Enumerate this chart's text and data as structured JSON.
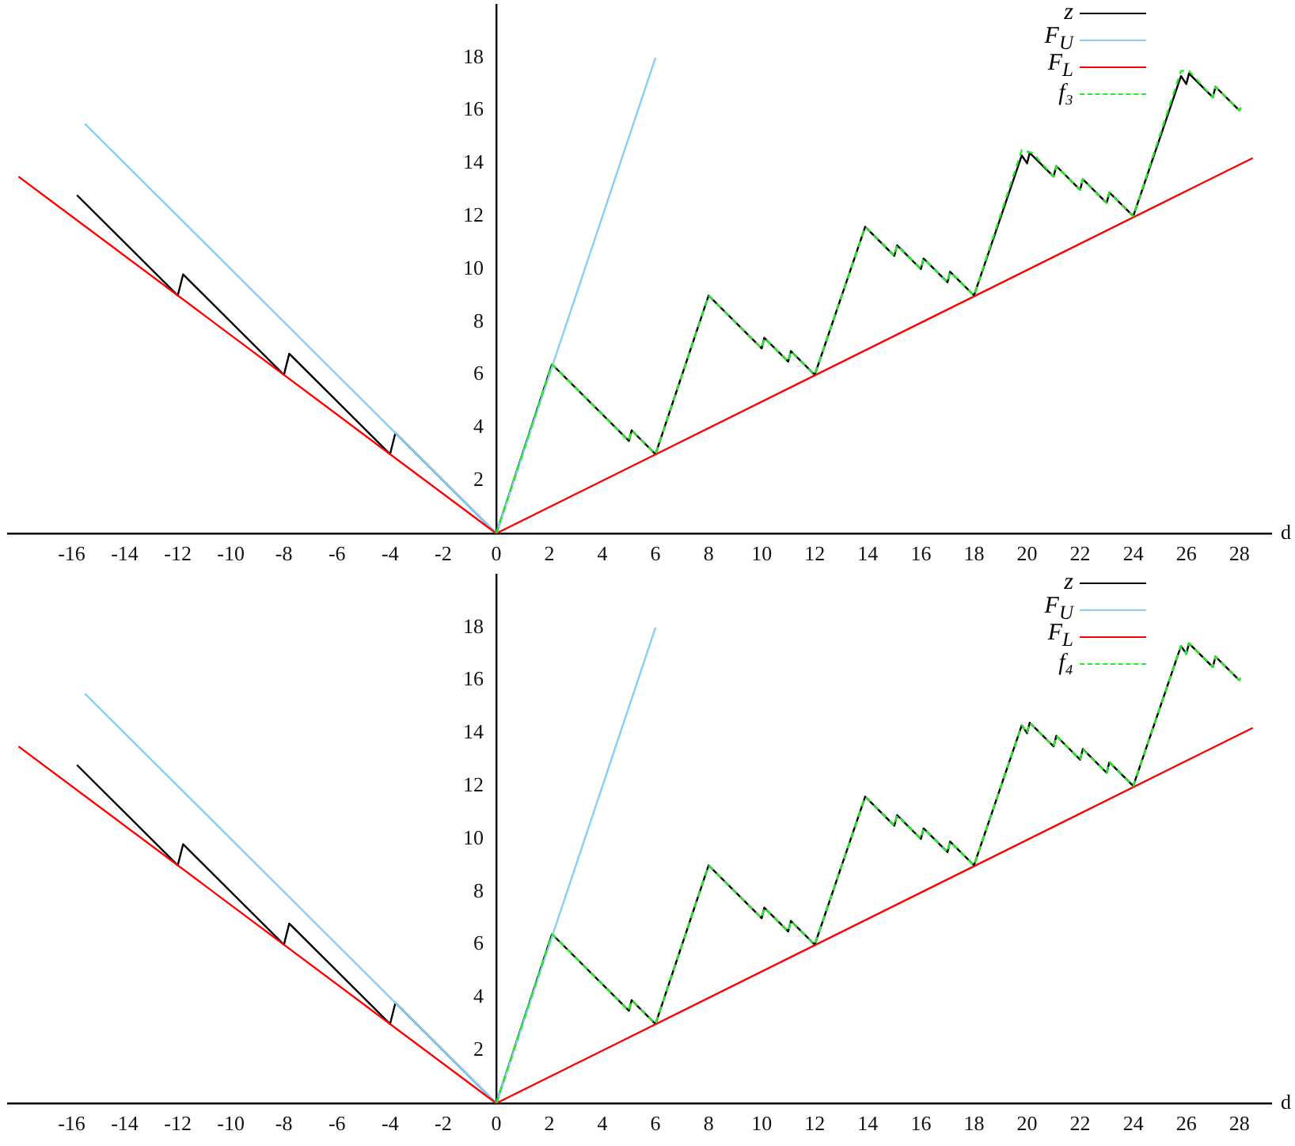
{
  "chart_data": [
    {
      "type": "line",
      "xlabel": "d",
      "xlim": [
        -18.4,
        29.2
      ],
      "ylim": [
        0,
        20
      ],
      "xticks": [
        -16,
        -14,
        -12,
        -10,
        -8,
        -6,
        -4,
        -2,
        0,
        2,
        4,
        6,
        8,
        10,
        12,
        14,
        16,
        18,
        20,
        22,
        24,
        26,
        28
      ],
      "yticks": [
        2,
        4,
        6,
        8,
        10,
        12,
        14,
        16,
        18
      ],
      "legend": "top right",
      "marker": "none",
      "series": [
        {
          "name": "z",
          "color": "#000000",
          "line_style": "solid",
          "x": [
            -15.8,
            -12,
            -11.8,
            -8,
            -7.8,
            -4,
            -3.8,
            0,
            2.1,
            5,
            5.1,
            6,
            8,
            10,
            10.1,
            11,
            11.1,
            12,
            13.9,
            15,
            15.1,
            16,
            16.1,
            17,
            17.1,
            18,
            19.8,
            20,
            20.1,
            21,
            21.1,
            22,
            22.1,
            23,
            23.1,
            24,
            25.8,
            26,
            26.1,
            27,
            27.1,
            28
          ],
          "values": [
            12.8,
            9,
            9.8,
            6,
            6.8,
            3,
            3.8,
            0,
            6.4,
            3.5,
            3.9,
            3,
            9,
            7,
            7.4,
            6.5,
            6.9,
            6,
            11.6,
            10.5,
            10.9,
            10,
            10.4,
            9.5,
            9.9,
            9,
            14.3,
            14,
            14.4,
            13.5,
            13.9,
            13,
            13.4,
            12.5,
            12.9,
            12,
            17.3,
            17,
            17.4,
            16.5,
            16.9,
            16
          ]
        },
        {
          "name": "F$_{U}$",
          "color": "#87cefa",
          "line_style": "solid",
          "x": [
            -15.5,
            0,
            6
          ],
          "values": [
            15.5,
            0,
            18
          ]
        },
        {
          "name": "F$_{L}$",
          "color": "#ff0000",
          "line_style": "solid",
          "x": [
            -18,
            0,
            28.5
          ],
          "values": [
            13.5,
            0,
            14.2
          ]
        },
        {
          "name": "f₃",
          "color": "#22ee22",
          "line_style": "dashed",
          "x": [
            0,
            2.1,
            5,
            5.1,
            6,
            8,
            10,
            10.1,
            11,
            11.1,
            12,
            13.9,
            15,
            15.1,
            16,
            16.1,
            17,
            17.1,
            18,
            19.8,
            20.2,
            21,
            21.1,
            22,
            22.1,
            23,
            23.1,
            24,
            25.8,
            26.1,
            27,
            27.1,
            28,
            28.1
          ],
          "values": [
            0,
            6.4,
            3.5,
            3.9,
            3,
            9,
            7,
            7.4,
            6.5,
            6.9,
            6,
            11.6,
            10.5,
            10.9,
            10,
            10.4,
            9.5,
            9.9,
            9,
            14.5,
            14.4,
            13.5,
            13.9,
            13,
            13.4,
            12.5,
            12.9,
            12,
            17.5,
            17.5,
            16.5,
            16.9,
            16,
            16.2
          ]
        }
      ]
    },
    {
      "type": "line",
      "xlabel": "d",
      "xlim": [
        -18.4,
        29.2
      ],
      "ylim": [
        0,
        20
      ],
      "xticks": [
        -16,
        -14,
        -12,
        -10,
        -8,
        -6,
        -4,
        -2,
        0,
        2,
        4,
        6,
        8,
        10,
        12,
        14,
        16,
        18,
        20,
        22,
        24,
        26,
        28
      ],
      "yticks": [
        2,
        4,
        6,
        8,
        10,
        12,
        14,
        16,
        18
      ],
      "legend": "top right",
      "marker": "none",
      "series": [
        {
          "name": "z",
          "color": "#000000",
          "line_style": "solid",
          "x": [
            -15.8,
            -12,
            -11.8,
            -8,
            -7.8,
            -4,
            -3.8,
            0,
            2.1,
            5,
            5.1,
            6,
            8,
            10,
            10.1,
            11,
            11.1,
            12,
            13.9,
            15,
            15.1,
            16,
            16.1,
            17,
            17.1,
            18,
            19.8,
            20,
            20.1,
            21,
            21.1,
            22,
            22.1,
            23,
            23.1,
            24,
            25.8,
            26,
            26.1,
            27,
            27.1,
            28
          ],
          "values": [
            12.8,
            9,
            9.8,
            6,
            6.8,
            3,
            3.8,
            0,
            6.4,
            3.5,
            3.9,
            3,
            9,
            7,
            7.4,
            6.5,
            6.9,
            6,
            11.6,
            10.5,
            10.9,
            10,
            10.4,
            9.5,
            9.9,
            9,
            14.3,
            14,
            14.4,
            13.5,
            13.9,
            13,
            13.4,
            12.5,
            12.9,
            12,
            17.3,
            17,
            17.4,
            16.5,
            16.9,
            16
          ]
        },
        {
          "name": "F$_{U}$",
          "color": "#87cefa",
          "line_style": "solid",
          "x": [
            -15.5,
            0,
            6
          ],
          "values": [
            15.5,
            0,
            18
          ]
        },
        {
          "name": "F$_{L}$",
          "color": "#ff0000",
          "line_style": "solid",
          "x": [
            -18,
            0,
            28.5
          ],
          "values": [
            13.5,
            0,
            14.2
          ]
        },
        {
          "name": "f₄",
          "color": "#22ee22",
          "line_style": "dashed",
          "x": [
            0,
            2.1,
            5,
            5.1,
            6,
            8,
            10,
            10.1,
            11,
            11.1,
            12,
            13.9,
            15,
            15.1,
            16,
            16.1,
            17,
            17.1,
            18,
            19.8,
            20,
            20.1,
            21,
            21.1,
            22,
            22.1,
            23,
            23.1,
            24,
            25.8,
            26,
            26.1,
            27,
            27.1,
            28,
            28.1
          ],
          "values": [
            0,
            6.4,
            3.5,
            3.9,
            3,
            9,
            7,
            7.4,
            6.5,
            6.9,
            6,
            11.6,
            10.5,
            10.9,
            10,
            10.4,
            9.5,
            9.9,
            9,
            14.3,
            14,
            14.4,
            13.5,
            13.9,
            13,
            13.4,
            12.5,
            12.9,
            12,
            17.3,
            17,
            17.4,
            16.5,
            16.9,
            16,
            16.2
          ]
        }
      ]
    }
  ]
}
